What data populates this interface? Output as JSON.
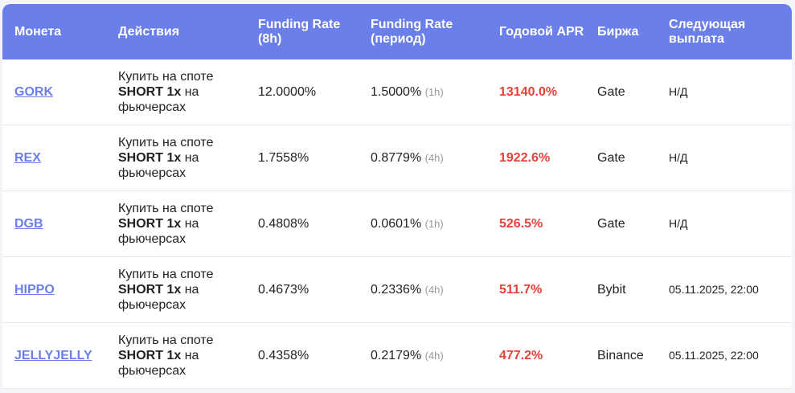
{
  "headers": {
    "coin": "Монета",
    "actions": "Действия",
    "fr8h": "Funding Rate (8h)",
    "frperiod": "Funding Rate (период)",
    "apr": "Годовой APR",
    "exchange": "Биржа",
    "next": "Следующая выплата"
  },
  "colors": {
    "header": "#6a7fe9",
    "apr": "#e8413a"
  },
  "rows": [
    {
      "coin": "GORK",
      "a1": "Купить на споте",
      "a2": "SHORT 1x",
      "a3": "на",
      "a4": "фьючерсах",
      "fr8h": "12.0000%",
      "fr": "1.5000%",
      "period": "(1h)",
      "apr": "13140.0%",
      "exchange": "Gate",
      "next": "Н/Д"
    },
    {
      "coin": "REX",
      "a1": "Купить на споте",
      "a2": "SHORT 1x",
      "a3": "на",
      "a4": "фьючерсах",
      "fr8h": "1.7558%",
      "fr": "0.8779%",
      "period": "(4h)",
      "apr": "1922.6%",
      "exchange": "Gate",
      "next": "Н/Д"
    },
    {
      "coin": "DGB",
      "a1": "Купить на споте",
      "a2": "SHORT 1x",
      "a3": "на",
      "a4": "фьючерсах",
      "fr8h": "0.4808%",
      "fr": "0.0601%",
      "period": "(1h)",
      "apr": "526.5%",
      "exchange": "Gate",
      "next": "Н/Д"
    },
    {
      "coin": "HIPPO",
      "a1": "Купить на споте",
      "a2": "SHORT 1x",
      "a3": "на",
      "a4": "фьючерсах",
      "fr8h": "0.4673%",
      "fr": "0.2336%",
      "period": "(4h)",
      "apr": "511.7%",
      "exchange": "Bybit",
      "next": "05.11.2025, 22:00"
    },
    {
      "coin": "JELLYJELLY",
      "a1": "Купить на споте",
      "a2": "SHORT 1x",
      "a3": "на",
      "a4": "фьючерсах",
      "fr8h": "0.4358%",
      "fr": "0.2179%",
      "period": "(4h)",
      "apr": "477.2%",
      "exchange": "Binance",
      "next": "05.11.2025, 22:00"
    }
  ]
}
